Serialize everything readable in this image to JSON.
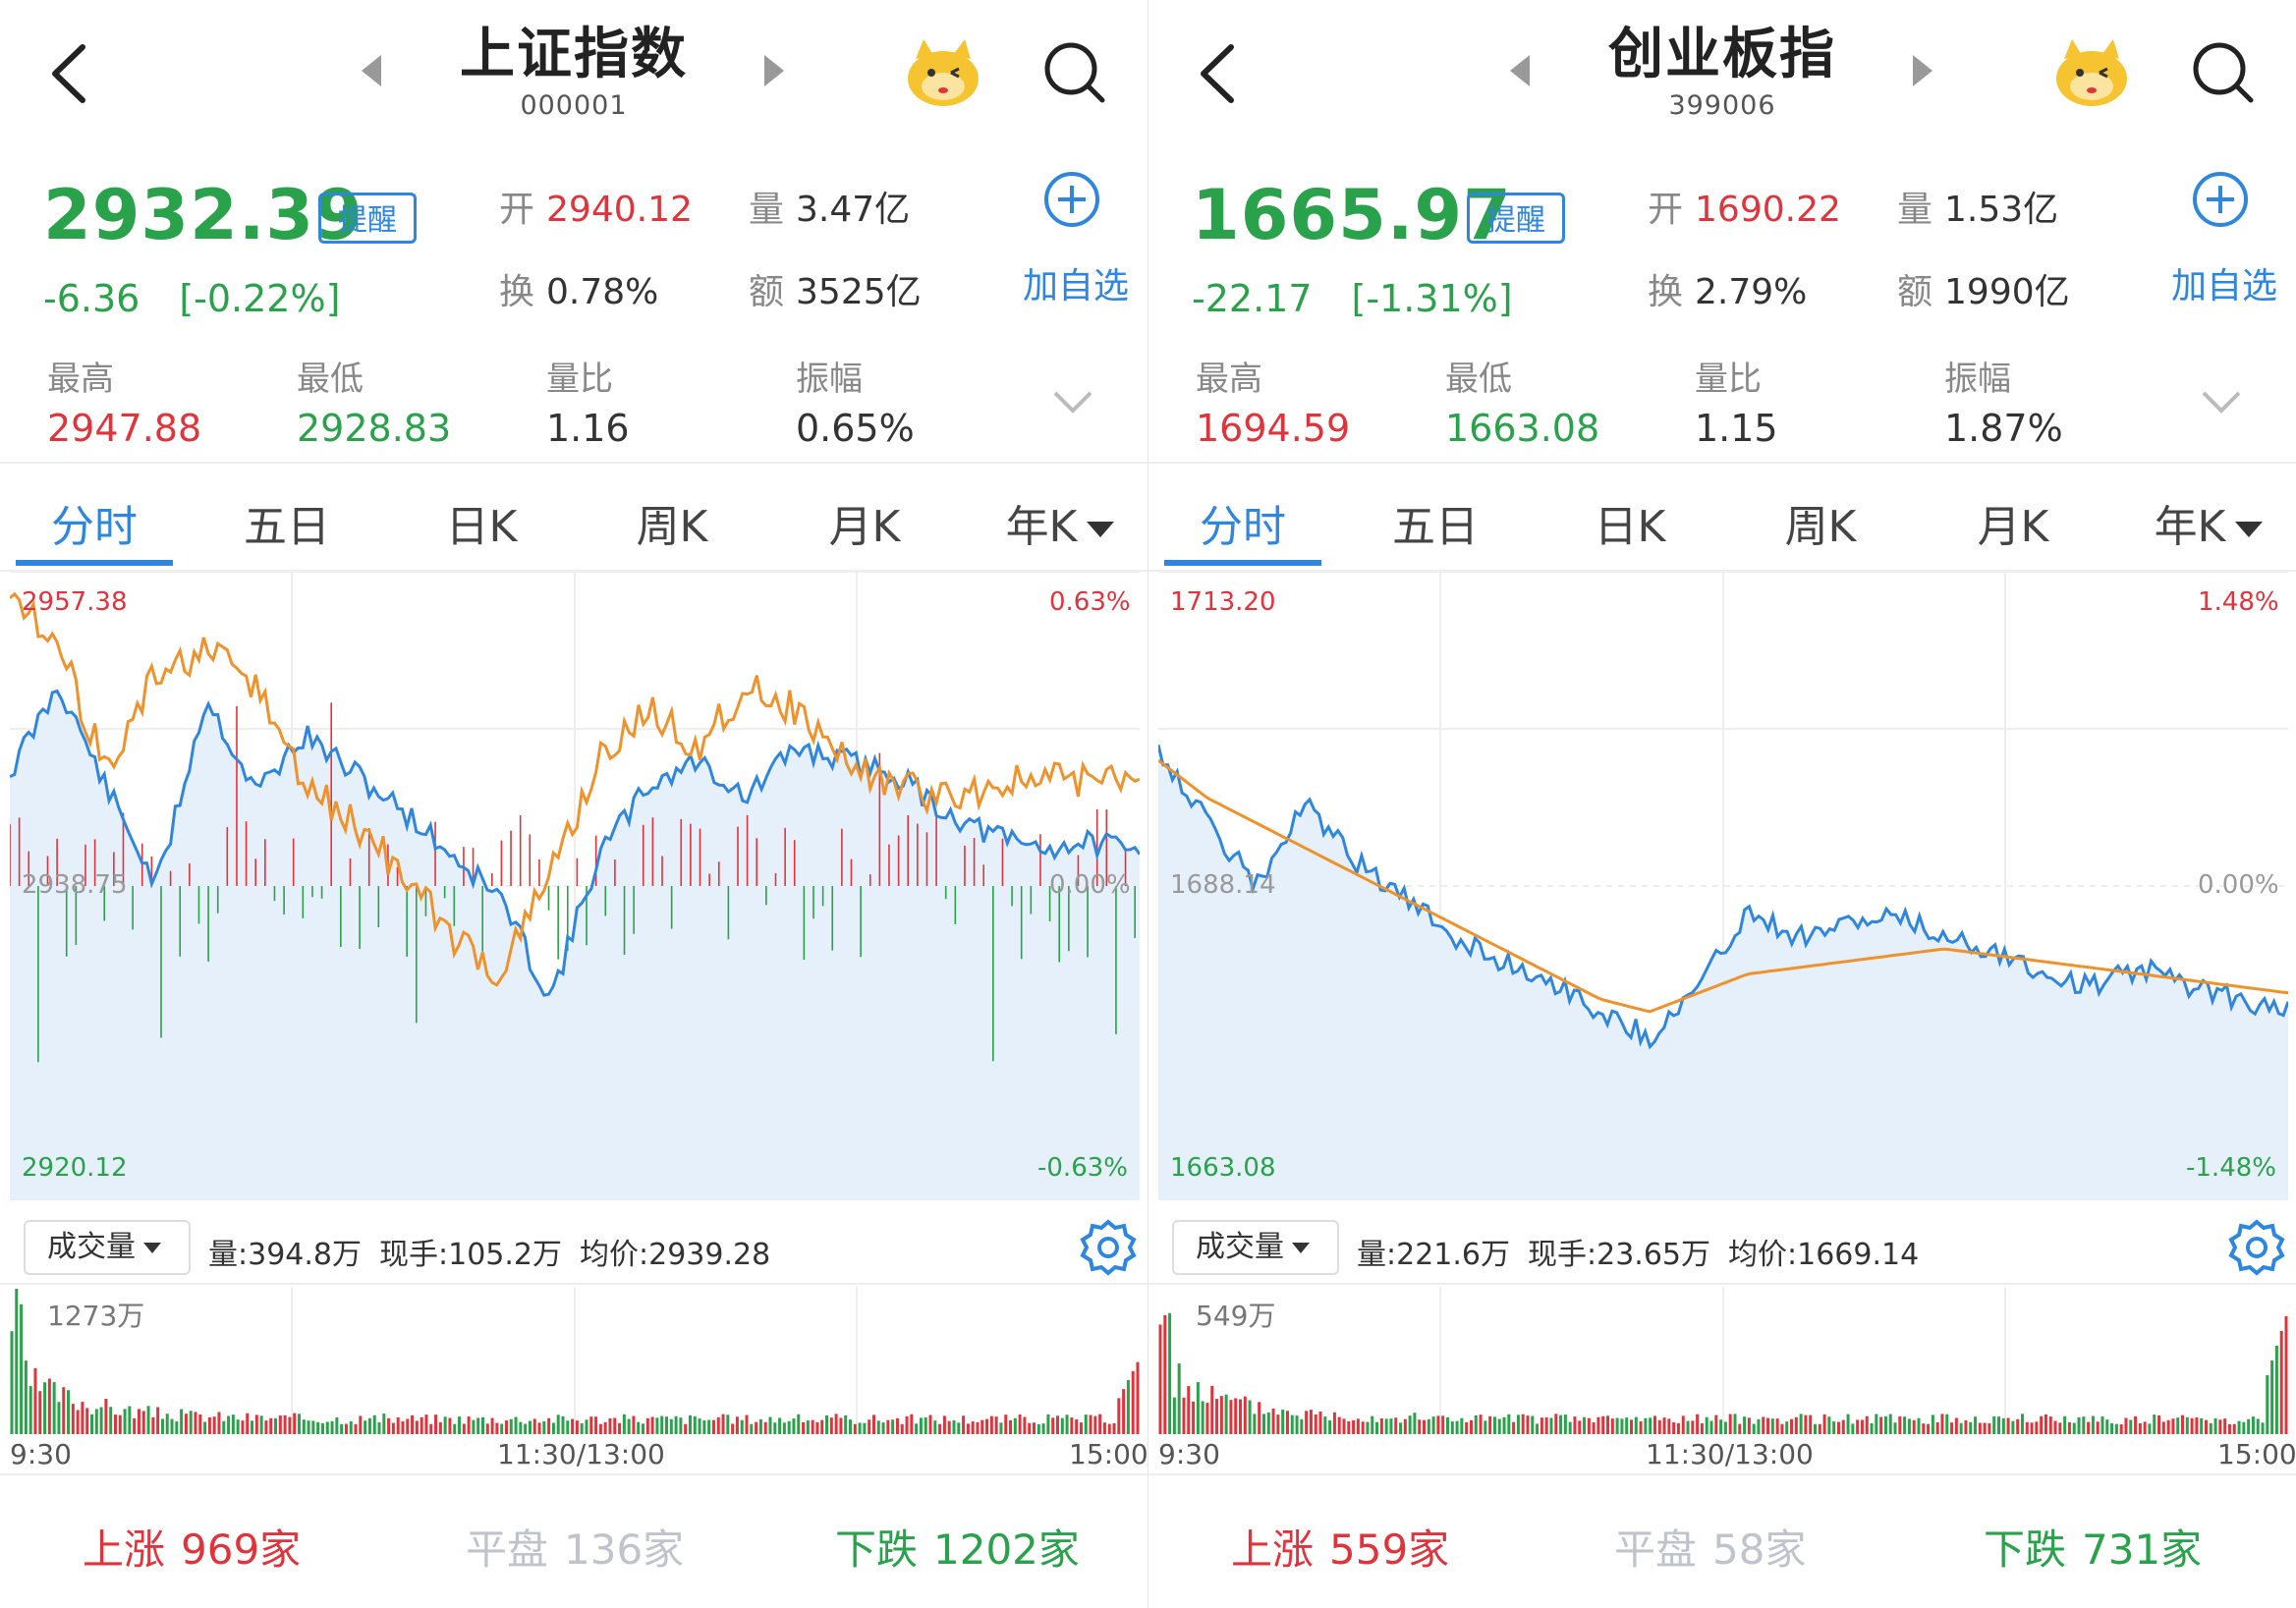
{
  "panels": [
    {
      "title": "上证指数",
      "code": "000001",
      "price": "2932.39",
      "remind_label": "提醒",
      "change": "-6.36",
      "change_pct": "[-0.22%]",
      "open_label": "开",
      "open": "2940.12",
      "volume_label": "量",
      "volume": "3.47亿",
      "turnover_label": "换",
      "turnover": "0.78%",
      "amount_label": "额",
      "amount": "3525亿",
      "add_label": "加自选",
      "high_label": "最高",
      "high": "2947.88",
      "low_label": "最低",
      "low": "2928.83",
      "ratio_label": "量比",
      "ratio": "1.16",
      "amp_label": "振幅",
      "amp": "0.65%",
      "tabs": [
        "分时",
        "五日",
        "日K",
        "周K",
        "月K",
        "年K"
      ],
      "chart_top": "2957.38",
      "chart_mid": "2938.75",
      "chart_bottom": "2920.12",
      "chart_pct_top": "0.63%",
      "chart_pct_mid": "0.00%",
      "chart_pct_bottom": "-0.63%",
      "vol_select": "成交量",
      "vol_amount": "量:394.8万",
      "vol_current": "现手:105.2万",
      "vol_avg": "均价:2939.28",
      "vol_max": "1273万",
      "time_start": "9:30",
      "time_mid": "11:30/13:00",
      "time_end": "15:00",
      "up_label": "上涨",
      "up": "969家",
      "flat_label": "平盘",
      "flat": "136家",
      "down_label": "下跌",
      "down": "1202家"
    },
    {
      "title": "创业板指",
      "code": "399006",
      "price": "1665.97",
      "remind_label": "提醒",
      "change": "-22.17",
      "change_pct": "[-1.31%]",
      "open_label": "开",
      "open": "1690.22",
      "volume_label": "量",
      "volume": "1.53亿",
      "turnover_label": "换",
      "turnover": "2.79%",
      "amount_label": "额",
      "amount": "1990亿",
      "add_label": "加自选",
      "high_label": "最高",
      "high": "1694.59",
      "low_label": "最低",
      "low": "1663.08",
      "ratio_label": "量比",
      "ratio": "1.15",
      "amp_label": "振幅",
      "amp": "1.87%",
      "tabs": [
        "分时",
        "五日",
        "日K",
        "周K",
        "月K",
        "年K"
      ],
      "chart_top": "1713.20",
      "chart_mid": "1688.14",
      "chart_bottom": "1663.08",
      "chart_pct_top": "1.48%",
      "chart_pct_mid": "0.00%",
      "chart_pct_bottom": "-1.48%",
      "vol_select": "成交量",
      "vol_amount": "量:221.6万",
      "vol_current": "现手:23.65万",
      "vol_avg": "均价:1669.14",
      "vol_max": "549万",
      "time_start": "9:30",
      "time_mid": "11:30/13:00",
      "time_end": "15:00",
      "up_label": "上涨",
      "up": "559家",
      "flat_label": "平盘",
      "flat": "58家",
      "down_label": "下跌",
      "down": "731家"
    }
  ],
  "colors": {
    "up_red": "#e0343c",
    "down_green": "#2aa14b",
    "accent_blue": "#2e86de",
    "avg_orange": "#f0922b",
    "fill_blue": "#e6f0fb"
  },
  "icons": [
    "back-arrow-icon",
    "prev-arrow-icon",
    "next-arrow-icon",
    "mascot-icon",
    "search-icon",
    "add-circle-icon",
    "chevron-down-icon",
    "gear-icon"
  ]
}
